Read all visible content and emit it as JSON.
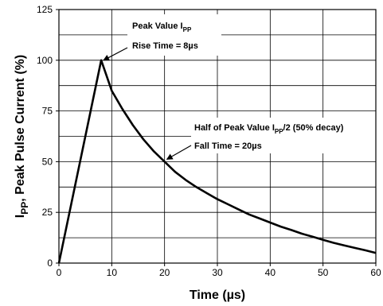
{
  "chart_data": {
    "type": "line",
    "xlabel": "Time (µs)",
    "ylabel": {
      "main": "I",
      "sub": "PP",
      "rest": ", Peak Pulse Current  (%)"
    },
    "xlim": [
      0,
      60
    ],
    "ylim": [
      0,
      125
    ],
    "x_ticks": [
      "0",
      "10",
      "20",
      "30",
      "40",
      "50",
      "60"
    ],
    "y_ticks": [
      "0",
      "25",
      "50",
      "75",
      "100",
      "125"
    ],
    "x_tick_values": [
      0,
      10,
      20,
      30,
      40,
      50,
      60
    ],
    "y_tick_values": [
      0,
      25,
      50,
      75,
      100,
      125
    ],
    "grid": true,
    "series": [
      {
        "x": [
          0,
          8,
          10,
          12,
          14,
          16,
          18,
          20,
          22,
          24,
          26,
          28,
          30,
          32,
          34,
          36,
          38,
          40,
          42,
          44,
          46,
          48,
          50,
          52,
          54,
          56,
          58,
          60
        ],
        "y": [
          0,
          100,
          85,
          76,
          68,
          61,
          55,
          50,
          45,
          41,
          37.5,
          34.5,
          31.5,
          29,
          26.5,
          24,
          22,
          20,
          18,
          16.3,
          14.5,
          13,
          11.5,
          10,
          8.7,
          7.5,
          6.3,
          5
        ]
      }
    ],
    "annotations": [
      {
        "line1_main": "Peak Value I",
        "line1_sub": "PP",
        "line2": "Rise Time = 8µs",
        "target_x": 8,
        "target_y": 100
      },
      {
        "line1_main": "Half of Peak Value I",
        "line1_sub": "PP",
        "line1_rest": "/2 (50% decay)",
        "line2": "Fall Time = 20µs",
        "target_x": 20,
        "target_y": 50
      }
    ],
    "colors": {
      "line": "#000000",
      "grid": "#000000",
      "background": "#ffffff"
    }
  }
}
